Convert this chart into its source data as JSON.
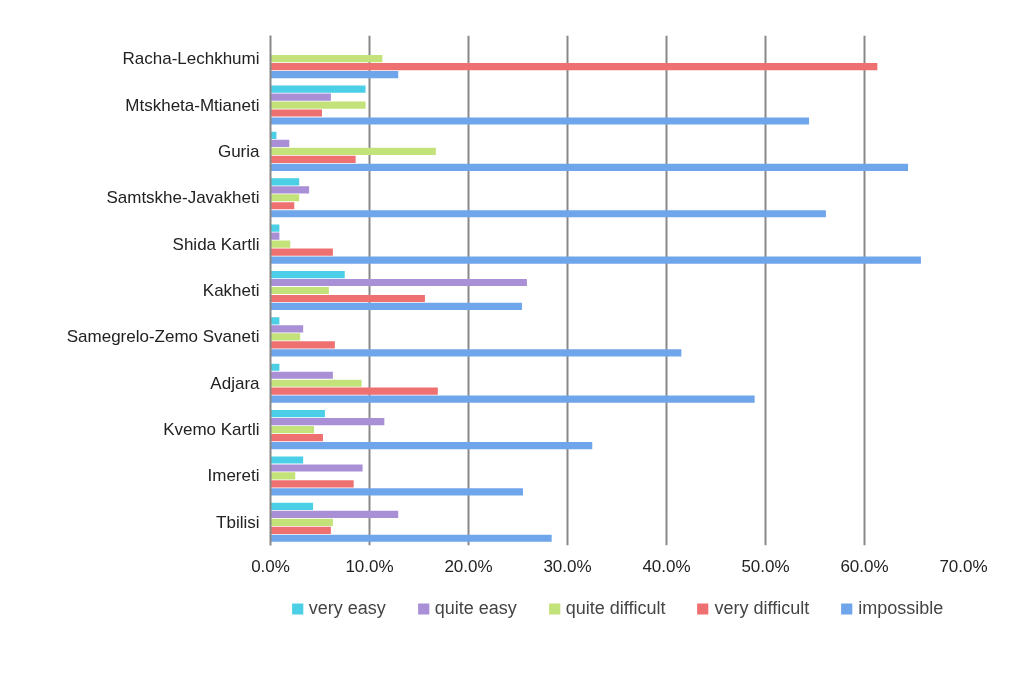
{
  "chart_data": {
    "type": "bar",
    "orientation": "horizontal",
    "categories": [
      "Racha-Lechkhumi",
      "Mtskheta-Mtianeti",
      "Guria",
      "Samtskhe-Javakheti",
      "Shida Kartli",
      "Kakheti",
      "Samegrelo-Zemo Svaneti",
      "Adjara",
      "Kvemo Kartli",
      "Imereti",
      "Tbilisi"
    ],
    "series": [
      {
        "name": "very easy",
        "color": "#4bcfe6",
        "values": [
          0,
          9.6,
          0.6,
          2.9,
          0.9,
          7.5,
          0.9,
          0.9,
          5.5,
          3.3,
          4.3
        ]
      },
      {
        "name": "quite easy",
        "color": "#a98fd6",
        "values": [
          0,
          6.1,
          1.9,
          3.9,
          0.9,
          25.9,
          3.3,
          6.3,
          11.5,
          9.3,
          12.9
        ]
      },
      {
        "name": "quite difficult",
        "color": "#c3e27a",
        "values": [
          11.3,
          9.6,
          16.7,
          2.9,
          2.0,
          5.9,
          3.0,
          9.2,
          4.4,
          2.5,
          6.3
        ]
      },
      {
        "name": "very difficult",
        "color": "#ef7070",
        "values": [
          61.3,
          5.2,
          8.6,
          2.4,
          6.3,
          15.6,
          6.5,
          16.9,
          5.3,
          8.4,
          6.1
        ]
      },
      {
        "name": "impossible",
        "color": "#6fa5ea",
        "values": [
          12.9,
          54.4,
          64.4,
          56.1,
          65.7,
          25.4,
          41.5,
          48.9,
          32.5,
          25.5,
          28.4
        ]
      }
    ],
    "xlim": [
      0,
      70
    ],
    "xticks": [
      {
        "value": 0,
        "label": "0.0%"
      },
      {
        "value": 10,
        "label": "10.0%"
      },
      {
        "value": 20,
        "label": "20.0%"
      },
      {
        "value": 30,
        "label": "30.0%"
      },
      {
        "value": 40,
        "label": "40.0%"
      },
      {
        "value": 50,
        "label": "50.0%"
      },
      {
        "value": 60,
        "label": "60.0%"
      },
      {
        "value": 70,
        "label": "70.0%"
      }
    ],
    "grid": "x",
    "legend": "bottom"
  }
}
